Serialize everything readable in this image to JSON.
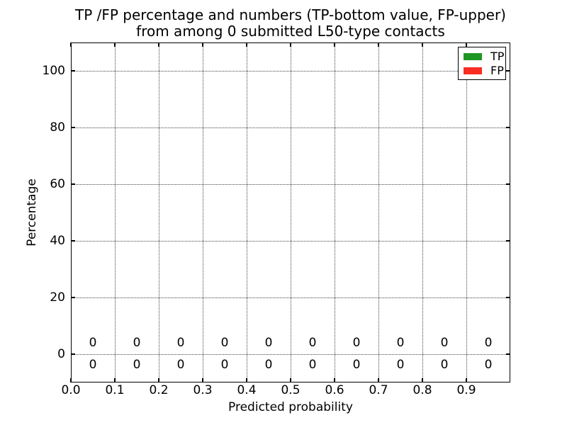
{
  "chart_data": {
    "type": "bar",
    "title": "TP /FP percentage and numbers (TP-bottom value, FP-upper)\nfrom among 0 submitted L50-type contacts",
    "title_lines": [
      "TP /FP percentage and numbers (TP-bottom value, FP-upper)",
      "from among 0 submitted L50-type contacts"
    ],
    "xlabel": "Predicted probability",
    "ylabel": "Percentage",
    "xlim": [
      0.0,
      1.0
    ],
    "ylim": [
      -10,
      110
    ],
    "x_tick_values": [
      0.0,
      0.1,
      0.2,
      0.3,
      0.4,
      0.5,
      0.6,
      0.7,
      0.8,
      0.9
    ],
    "x_tick_labels": [
      "0.0",
      "0.1",
      "0.2",
      "0.3",
      "0.4",
      "0.5",
      "0.6",
      "0.7",
      "0.8",
      "0.9"
    ],
    "y_tick_values": [
      0,
      20,
      40,
      60,
      80,
      100
    ],
    "y_tick_labels": [
      "0",
      "20",
      "40",
      "60",
      "80",
      "100"
    ],
    "grid_style": "dotted",
    "background": "#ffffff",
    "axis_color": "#000000",
    "total_submitted": 0,
    "bin_centers": [
      0.05,
      0.15,
      0.25,
      0.35,
      0.45,
      0.55,
      0.65,
      0.75,
      0.85,
      0.95
    ],
    "series": [
      {
        "name": "TP",
        "color": "#1e9623",
        "count_label_row": "bottom",
        "values": [
          0,
          0,
          0,
          0,
          0,
          0,
          0,
          0,
          0,
          0
        ]
      },
      {
        "name": "FP",
        "color": "#fa2d23",
        "count_label_row": "top",
        "values": [
          0,
          0,
          0,
          0,
          0,
          0,
          0,
          0,
          0,
          0
        ]
      }
    ],
    "legend": {
      "position": "upper right",
      "entries": [
        {
          "label": "TP",
          "color": "#1e9623"
        },
        {
          "label": "FP",
          "color": "#fa2d23"
        }
      ]
    }
  }
}
